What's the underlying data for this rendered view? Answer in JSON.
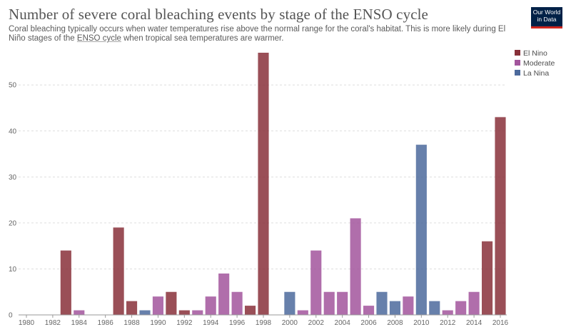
{
  "header": {
    "title": "Number of severe coral bleaching events by stage of the ENSO cycle",
    "subtitle_text": "Coral bleaching typically occurs when water temperatures rise above the normal range for the coral's habitat. This is more likely during El Niño stages of the ",
    "subtitle_link": "ENSO cycle",
    "subtitle_end": " when tropical sea temperatures are warmer."
  },
  "logo": {
    "line1": "Our World",
    "line2": "in Data"
  },
  "chart_data": {
    "type": "bar",
    "title": "Number of severe coral bleaching events by stage of the ENSO cycle",
    "xlabel": "",
    "ylabel": "",
    "ylim": [
      0,
      57
    ],
    "yticks": [
      0,
      10,
      20,
      30,
      40,
      50
    ],
    "xlim": [
      1980,
      2016
    ],
    "xticks": [
      1980,
      1982,
      1984,
      1986,
      1988,
      1990,
      1992,
      1994,
      1996,
      1998,
      2000,
      2002,
      2004,
      2006,
      2008,
      2010,
      2012,
      2014,
      2016
    ],
    "grid": true,
    "legend_position": "top-right",
    "categories": [
      {
        "key": "elnino",
        "label": "El Nino",
        "color": "#883039"
      },
      {
        "key": "moderate",
        "label": "Moderate",
        "color": "#a2559c"
      },
      {
        "key": "lanina",
        "label": "La Nina",
        "color": "#4c6a9c"
      }
    ],
    "bars": [
      {
        "year": 1983,
        "value": 14,
        "stage": "elnino"
      },
      {
        "year": 1984,
        "value": 1,
        "stage": "moderate"
      },
      {
        "year": 1987,
        "value": 19,
        "stage": "elnino"
      },
      {
        "year": 1988,
        "value": 3,
        "stage": "elnino"
      },
      {
        "year": 1989,
        "value": 1,
        "stage": "lanina"
      },
      {
        "year": 1990,
        "value": 4,
        "stage": "moderate"
      },
      {
        "year": 1991,
        "value": 5,
        "stage": "elnino"
      },
      {
        "year": 1992,
        "value": 1,
        "stage": "elnino"
      },
      {
        "year": 1993,
        "value": 1,
        "stage": "moderate"
      },
      {
        "year": 1994,
        "value": 4,
        "stage": "moderate"
      },
      {
        "year": 1995,
        "value": 9,
        "stage": "moderate"
      },
      {
        "year": 1996,
        "value": 5,
        "stage": "moderate"
      },
      {
        "year": 1997,
        "value": 2,
        "stage": "elnino"
      },
      {
        "year": 1998,
        "value": 57,
        "stage": "elnino"
      },
      {
        "year": 2000,
        "value": 5,
        "stage": "lanina"
      },
      {
        "year": 2001,
        "value": 1,
        "stage": "moderate"
      },
      {
        "year": 2002,
        "value": 14,
        "stage": "moderate"
      },
      {
        "year": 2003,
        "value": 5,
        "stage": "moderate"
      },
      {
        "year": 2004,
        "value": 5,
        "stage": "moderate"
      },
      {
        "year": 2005,
        "value": 21,
        "stage": "moderate"
      },
      {
        "year": 2006,
        "value": 2,
        "stage": "moderate"
      },
      {
        "year": 2007,
        "value": 5,
        "stage": "lanina"
      },
      {
        "year": 2008,
        "value": 3,
        "stage": "lanina"
      },
      {
        "year": 2009,
        "value": 4,
        "stage": "moderate"
      },
      {
        "year": 2010,
        "value": 37,
        "stage": "lanina"
      },
      {
        "year": 2011,
        "value": 3,
        "stage": "lanina"
      },
      {
        "year": 2012,
        "value": 1,
        "stage": "moderate"
      },
      {
        "year": 2013,
        "value": 3,
        "stage": "moderate"
      },
      {
        "year": 2014,
        "value": 5,
        "stage": "moderate"
      },
      {
        "year": 2015,
        "value": 16,
        "stage": "elnino"
      },
      {
        "year": 2016,
        "value": 43,
        "stage": "elnino"
      }
    ]
  }
}
